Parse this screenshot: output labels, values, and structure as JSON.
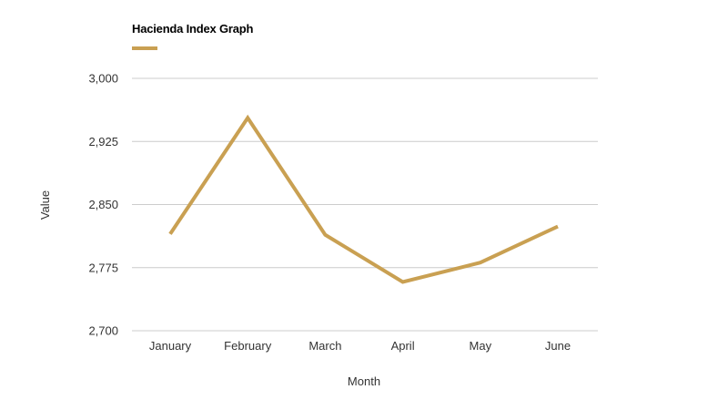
{
  "chart_data": {
    "type": "line",
    "categories": [
      "January",
      "February",
      "March",
      "April",
      "May",
      "June"
    ],
    "series": [
      {
        "name": "Hacienda Index Graph",
        "values": [
          2815,
          2953,
          2814,
          2758,
          2781,
          2824
        ]
      }
    ],
    "xlabel": "Month",
    "ylabel": "Value",
    "ylim": [
      2700,
      3000
    ],
    "yticks": [
      2700,
      2775,
      2850,
      2925,
      3000
    ],
    "ytick_labels": [
      "2,700",
      "2,775",
      "2,850",
      "2,925",
      "3,000"
    ],
    "grid": true,
    "legend_position": "top-left",
    "colors": {
      "series": "#c9a052",
      "grid": "#cccccc",
      "text": "#333333"
    }
  }
}
